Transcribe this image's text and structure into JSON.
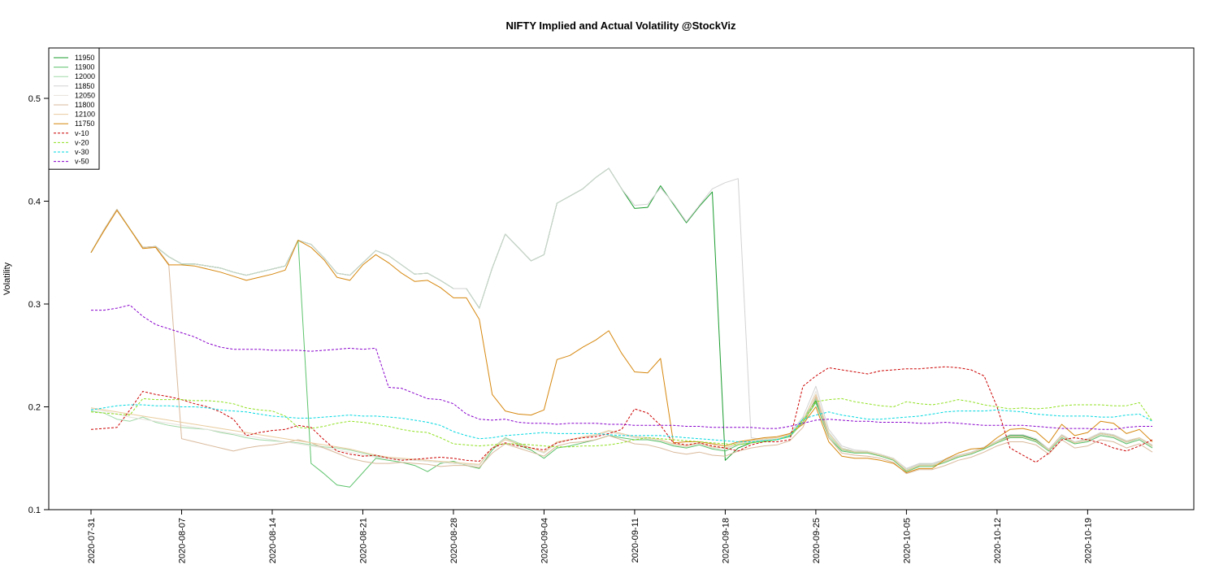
{
  "chart_data": {
    "type": "line",
    "title": "NIFTY Implied and Actual Volatility @StockViz",
    "xlabel": "",
    "ylabel": "Volatility",
    "ylim": [
      0.1,
      0.55
    ],
    "y_ticks": [
      0.1,
      0.2,
      0.3,
      0.4,
      0.5
    ],
    "y_tick_labels": [
      "0.1",
      "0.2",
      "0.3",
      "0.4",
      "0.5"
    ],
    "x_tick_labels": [
      "2020-07-31",
      "2020-08-07",
      "2020-08-14",
      "2020-08-21",
      "2020-08-28",
      "2020-09-04",
      "2020-09-11",
      "2020-09-18",
      "2020-09-25",
      "2020-10-05",
      "2020-10-12",
      "2020-10-19"
    ],
    "x_tick_index": [
      0,
      7,
      14,
      21,
      28,
      35,
      42,
      49,
      56,
      63,
      70,
      77
    ],
    "x_count": 83,
    "grid": false,
    "legend_position": "top-left",
    "series": [
      {
        "name": "11950",
        "color": "#1a9c2e",
        "dash": "solid",
        "values": [
          0.35,
          0.372,
          0.392,
          0.373,
          0.355,
          0.356,
          0.346,
          0.339,
          0.339,
          0.337,
          0.335,
          0.331,
          0.328,
          0.331,
          0.334,
          0.337,
          0.362,
          0.358,
          0.345,
          0.33,
          0.328,
          0.34,
          0.352,
          0.347,
          0.338,
          0.329,
          0.33,
          0.323,
          0.315,
          0.315,
          0.296,
          0.335,
          0.368,
          0.355,
          0.342,
          0.348,
          0.398,
          0.405,
          0.412,
          0.423,
          0.432,
          0.412,
          0.393,
          0.394,
          0.415,
          0.397,
          0.379,
          0.395,
          0.409,
          0.148,
          0.16,
          0.165,
          0.167,
          0.168,
          0.172,
          0.188,
          0.206,
          0.175,
          0.16,
          0.156,
          0.156,
          0.153,
          0.15,
          0.139,
          0.144,
          0.144,
          0.148,
          0.152,
          0.155,
          0.16,
          0.166,
          0.172,
          0.172,
          0.168,
          0.158,
          0.172,
          0.165,
          0.168,
          0.174,
          0.172,
          0.166,
          0.169,
          0.162
        ]
      },
      {
        "name": "11900",
        "color": "#5dc36c",
        "dash": "solid",
        "values": [
          0.35,
          0.372,
          0.392,
          0.373,
          0.355,
          0.356,
          0.346,
          0.339,
          0.339,
          0.337,
          0.335,
          0.331,
          0.328,
          0.331,
          0.334,
          0.337,
          0.362,
          0.145,
          0.135,
          0.124,
          0.122,
          0.136,
          0.15,
          0.148,
          0.146,
          0.143,
          0.137,
          0.145,
          0.147,
          0.143,
          0.14,
          0.158,
          0.17,
          0.163,
          0.158,
          0.15,
          0.16,
          0.162,
          0.165,
          0.168,
          0.172,
          0.17,
          0.168,
          0.168,
          0.166,
          0.162,
          0.16,
          0.163,
          0.159,
          0.157,
          0.163,
          0.165,
          0.167,
          0.168,
          0.171,
          0.185,
          0.204,
          0.17,
          0.157,
          0.155,
          0.155,
          0.152,
          0.148,
          0.137,
          0.142,
          0.142,
          0.146,
          0.151,
          0.154,
          0.159,
          0.165,
          0.17,
          0.17,
          0.166,
          0.157,
          0.17,
          0.164,
          0.166,
          0.172,
          0.17,
          0.164,
          0.168,
          0.16
        ]
      },
      {
        "name": "12000",
        "color": "#9fd8a5",
        "dash": "solid",
        "values": [
          0.196,
          0.194,
          0.188,
          0.186,
          0.19,
          0.185,
          0.182,
          0.18,
          0.179,
          0.178,
          0.175,
          0.173,
          0.17,
          0.168,
          0.167,
          0.166,
          0.165,
          0.163,
          0.161,
          0.16,
          0.158,
          0.155,
          0.152,
          0.15,
          0.149,
          0.148,
          0.147,
          0.146,
          0.145,
          0.144,
          0.143,
          0.16,
          0.17,
          0.165,
          0.16,
          0.155,
          0.165,
          0.168,
          0.17,
          0.172,
          0.176,
          0.173,
          0.17,
          0.169,
          0.167,
          0.163,
          0.161,
          0.164,
          0.16,
          0.159,
          0.164,
          0.166,
          0.168,
          0.169,
          0.172,
          0.186,
          0.208,
          0.172,
          0.158,
          0.156,
          0.156,
          0.153,
          0.149,
          0.138,
          0.143,
          0.143,
          0.147,
          0.152,
          0.155,
          0.16,
          0.166,
          0.171,
          0.171,
          0.167,
          0.158,
          0.171,
          0.165,
          0.167,
          0.173,
          0.171,
          0.165,
          0.169,
          0.161
        ]
      },
      {
        "name": "11850",
        "color": "#d2d2d2",
        "dash": "solid",
        "values": [
          0.35,
          0.372,
          0.392,
          0.373,
          0.355,
          0.356,
          0.346,
          0.339,
          0.339,
          0.337,
          0.335,
          0.331,
          0.328,
          0.331,
          0.334,
          0.337,
          0.362,
          0.358,
          0.345,
          0.33,
          0.328,
          0.34,
          0.352,
          0.347,
          0.338,
          0.329,
          0.33,
          0.323,
          0.315,
          0.315,
          0.296,
          0.335,
          0.368,
          0.355,
          0.342,
          0.348,
          0.398,
          0.405,
          0.412,
          0.423,
          0.432,
          0.412,
          0.396,
          0.397,
          0.413,
          0.398,
          0.38,
          0.396,
          0.412,
          0.418,
          0.422,
          0.17,
          0.168,
          0.169,
          0.174,
          0.19,
          0.22,
          0.178,
          0.162,
          0.158,
          0.157,
          0.154,
          0.15,
          0.14,
          0.145,
          0.145,
          0.149,
          0.153,
          0.156,
          0.161,
          0.167,
          0.173,
          0.173,
          0.169,
          0.159,
          0.173,
          0.166,
          0.169,
          0.175,
          0.173,
          0.167,
          0.17,
          0.163
        ]
      },
      {
        "name": "12050",
        "color": "#e6e2dc",
        "dash": "solid",
        "values": [
          0.198,
          0.196,
          0.193,
          0.19,
          0.188,
          0.186,
          0.184,
          0.182,
          0.18,
          0.178,
          0.176,
          0.174,
          0.172,
          0.17,
          0.168,
          0.166,
          0.164,
          0.162,
          0.16,
          0.158,
          0.156,
          0.153,
          0.151,
          0.15,
          0.149,
          0.148,
          0.147,
          0.146,
          0.145,
          0.144,
          0.143,
          0.16,
          0.169,
          0.164,
          0.16,
          0.155,
          0.165,
          0.168,
          0.17,
          0.172,
          0.176,
          0.173,
          0.17,
          0.169,
          0.167,
          0.163,
          0.161,
          0.164,
          0.16,
          0.159,
          0.164,
          0.166,
          0.168,
          0.169,
          0.172,
          0.186,
          0.215,
          0.175,
          0.16,
          0.157,
          0.157,
          0.154,
          0.15,
          0.139,
          0.144,
          0.144,
          0.148,
          0.152,
          0.155,
          0.16,
          0.166,
          0.171,
          0.171,
          0.167,
          0.158,
          0.171,
          0.165,
          0.167,
          0.173,
          0.171,
          0.165,
          0.169,
          0.161
        ]
      },
      {
        "name": "11800",
        "color": "#d9b99b",
        "dash": "solid",
        "values": [
          0.35,
          0.372,
          0.392,
          0.373,
          0.355,
          0.356,
          0.339,
          0.169,
          0.166,
          0.163,
          0.16,
          0.157,
          0.16,
          0.162,
          0.163,
          0.165,
          0.168,
          0.165,
          0.16,
          0.155,
          0.15,
          0.147,
          0.145,
          0.145,
          0.146,
          0.145,
          0.144,
          0.142,
          0.143,
          0.143,
          0.141,
          0.155,
          0.164,
          0.16,
          0.156,
          0.152,
          0.162,
          0.165,
          0.166,
          0.168,
          0.172,
          0.168,
          0.164,
          0.163,
          0.16,
          0.156,
          0.154,
          0.156,
          0.153,
          0.152,
          0.157,
          0.16,
          0.162,
          0.163,
          0.167,
          0.18,
          0.21,
          0.17,
          0.155,
          0.153,
          0.152,
          0.15,
          0.146,
          0.135,
          0.139,
          0.139,
          0.143,
          0.148,
          0.151,
          0.156,
          0.162,
          0.166,
          0.166,
          0.163,
          0.154,
          0.168,
          0.16,
          0.162,
          0.168,
          0.166,
          0.16,
          0.164,
          0.156
        ]
      },
      {
        "name": "12100",
        "color": "#e9cc9e",
        "dash": "solid",
        "values": [
          0.199,
          0.197,
          0.195,
          0.193,
          0.191,
          0.189,
          0.187,
          0.185,
          0.183,
          0.181,
          0.179,
          0.177,
          0.175,
          0.173,
          0.171,
          0.169,
          0.167,
          0.165,
          0.163,
          0.161,
          0.159,
          0.156,
          0.153,
          0.151,
          0.15,
          0.149,
          0.148,
          0.147,
          0.146,
          0.145,
          0.144,
          0.16,
          0.168,
          0.164,
          0.16,
          0.156,
          0.166,
          0.168,
          0.171,
          0.173,
          0.177,
          0.174,
          0.171,
          0.17,
          0.168,
          0.164,
          0.162,
          0.165,
          0.161,
          0.16,
          0.165,
          0.167,
          0.169,
          0.17,
          0.173,
          0.187,
          0.212,
          0.174,
          0.159,
          0.156,
          0.156,
          0.153,
          0.149,
          0.138,
          0.143,
          0.143,
          0.147,
          0.152,
          0.155,
          0.16,
          0.166,
          0.171,
          0.171,
          0.167,
          0.158,
          0.172,
          0.165,
          0.168,
          0.174,
          0.172,
          0.166,
          0.17,
          0.162
        ]
      },
      {
        "name": "11750",
        "color": "#d6870e",
        "dash": "solid",
        "values": [
          0.35,
          0.371,
          0.391,
          0.373,
          0.354,
          0.355,
          0.338,
          0.338,
          0.337,
          0.334,
          0.331,
          0.327,
          0.323,
          0.326,
          0.329,
          0.333,
          0.362,
          0.355,
          0.343,
          0.326,
          0.323,
          0.338,
          0.348,
          0.34,
          0.33,
          0.322,
          0.323,
          0.316,
          0.306,
          0.306,
          0.285,
          0.212,
          0.196,
          0.193,
          0.192,
          0.197,
          0.246,
          0.25,
          0.258,
          0.265,
          0.274,
          0.252,
          0.234,
          0.233,
          0.247,
          0.165,
          0.166,
          0.166,
          0.164,
          0.162,
          0.166,
          0.168,
          0.17,
          0.171,
          0.174,
          0.183,
          0.2,
          0.166,
          0.152,
          0.15,
          0.15,
          0.148,
          0.145,
          0.136,
          0.14,
          0.14,
          0.149,
          0.155,
          0.159,
          0.16,
          0.17,
          0.178,
          0.179,
          0.176,
          0.165,
          0.183,
          0.172,
          0.175,
          0.186,
          0.184,
          0.174,
          0.178,
          0.166
        ]
      },
      {
        "name": "v-10",
        "color": "#cc0000",
        "dash": "dashed",
        "values": [
          0.178,
          0.179,
          0.18,
          0.197,
          0.215,
          0.212,
          0.21,
          0.207,
          0.203,
          0.2,
          0.195,
          0.188,
          0.172,
          0.175,
          0.177,
          0.178,
          0.182,
          0.18,
          0.168,
          0.157,
          0.154,
          0.152,
          0.153,
          0.15,
          0.148,
          0.149,
          0.15,
          0.151,
          0.15,
          0.148,
          0.147,
          0.16,
          0.165,
          0.162,
          0.16,
          0.158,
          0.165,
          0.168,
          0.17,
          0.171,
          0.174,
          0.178,
          0.198,
          0.194,
          0.182,
          0.165,
          0.163,
          0.165,
          0.162,
          0.16,
          0.157,
          0.163,
          0.166,
          0.166,
          0.168,
          0.22,
          0.23,
          0.238,
          0.236,
          0.234,
          0.232,
          0.235,
          0.236,
          0.237,
          0.237,
          0.238,
          0.239,
          0.238,
          0.236,
          0.23,
          0.2,
          0.16,
          0.153,
          0.146,
          0.155,
          0.168,
          0.17,
          0.168,
          0.165,
          0.16,
          0.157,
          0.162,
          0.168
        ]
      },
      {
        "name": "v-20",
        "color": "#8fe020",
        "dash": "dashed",
        "values": [
          0.195,
          0.194,
          0.193,
          0.192,
          0.208,
          0.207,
          0.207,
          0.207,
          0.206,
          0.206,
          0.205,
          0.203,
          0.199,
          0.197,
          0.196,
          0.191,
          0.18,
          0.179,
          0.181,
          0.184,
          0.186,
          0.185,
          0.183,
          0.181,
          0.178,
          0.176,
          0.175,
          0.17,
          0.164,
          0.163,
          0.162,
          0.163,
          0.164,
          0.164,
          0.163,
          0.162,
          0.161,
          0.161,
          0.162,
          0.162,
          0.163,
          0.165,
          0.168,
          0.17,
          0.169,
          0.168,
          0.167,
          0.166,
          0.165,
          0.164,
          0.163,
          0.165,
          0.166,
          0.168,
          0.172,
          0.186,
          0.205,
          0.207,
          0.208,
          0.205,
          0.203,
          0.201,
          0.2,
          0.205,
          0.203,
          0.202,
          0.204,
          0.207,
          0.205,
          0.202,
          0.2,
          0.198,
          0.199,
          0.198,
          0.199,
          0.201,
          0.202,
          0.202,
          0.202,
          0.201,
          0.201,
          0.204,
          0.186
        ]
      },
      {
        "name": "v-30",
        "color": "#00d8e0",
        "dash": "dashed",
        "values": [
          0.197,
          0.199,
          0.201,
          0.202,
          0.202,
          0.201,
          0.201,
          0.2,
          0.2,
          0.199,
          0.197,
          0.196,
          0.195,
          0.193,
          0.191,
          0.19,
          0.189,
          0.189,
          0.19,
          0.191,
          0.192,
          0.191,
          0.191,
          0.19,
          0.189,
          0.187,
          0.185,
          0.182,
          0.176,
          0.172,
          0.169,
          0.17,
          0.172,
          0.173,
          0.174,
          0.175,
          0.174,
          0.174,
          0.174,
          0.174,
          0.173,
          0.172,
          0.172,
          0.172,
          0.172,
          0.171,
          0.17,
          0.169,
          0.168,
          0.167,
          0.166,
          0.166,
          0.167,
          0.168,
          0.172,
          0.188,
          0.192,
          0.195,
          0.192,
          0.19,
          0.188,
          0.188,
          0.189,
          0.19,
          0.191,
          0.193,
          0.195,
          0.196,
          0.196,
          0.196,
          0.197,
          0.196,
          0.195,
          0.193,
          0.192,
          0.191,
          0.191,
          0.191,
          0.19,
          0.19,
          0.192,
          0.193,
          0.186
        ]
      },
      {
        "name": "v-50",
        "color": "#8800cc",
        "dash": "dashed",
        "values": [
          0.294,
          0.294,
          0.296,
          0.299,
          0.288,
          0.28,
          0.276,
          0.272,
          0.268,
          0.262,
          0.258,
          0.256,
          0.256,
          0.256,
          0.255,
          0.255,
          0.255,
          0.254,
          0.255,
          0.256,
          0.257,
          0.256,
          0.257,
          0.219,
          0.218,
          0.213,
          0.208,
          0.207,
          0.203,
          0.193,
          0.188,
          0.187,
          0.188,
          0.185,
          0.184,
          0.184,
          0.183,
          0.184,
          0.184,
          0.184,
          0.183,
          0.183,
          0.182,
          0.182,
          0.182,
          0.182,
          0.181,
          0.181,
          0.18,
          0.18,
          0.18,
          0.18,
          0.179,
          0.179,
          0.181,
          0.184,
          0.187,
          0.188,
          0.187,
          0.186,
          0.186,
          0.185,
          0.185,
          0.185,
          0.184,
          0.184,
          0.185,
          0.184,
          0.183,
          0.182,
          0.182,
          0.182,
          0.182,
          0.181,
          0.18,
          0.179,
          0.179,
          0.179,
          0.178,
          0.178,
          0.18,
          0.181,
          0.181
        ]
      }
    ]
  }
}
